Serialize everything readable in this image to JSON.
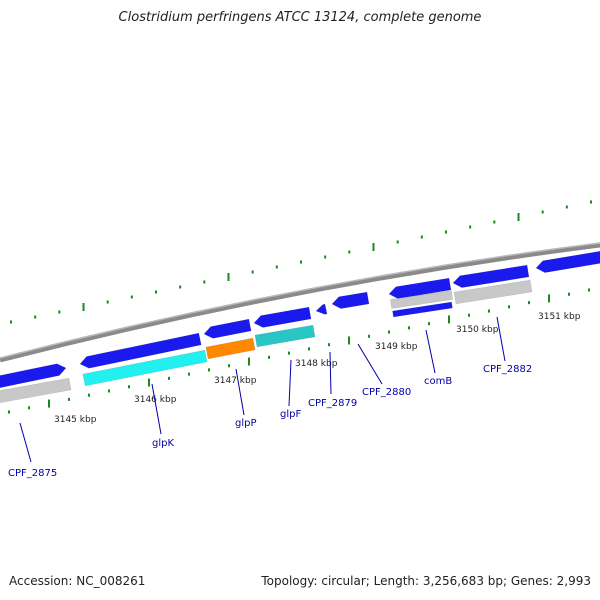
{
  "title": "Clostridium perfringens ATCC 13124, complete genome",
  "footer": {
    "accession": "Accession: NC_008261",
    "summary": "Topology: circular; Length: 3,256,683 bp; Genes: 2,993"
  },
  "colors": {
    "backbone": "#8a8a8a",
    "cds": "#1a1aee",
    "cds_gray": "#c8c8c8",
    "rna_cyan": "#22f0f0",
    "rna_orange": "#ff8800",
    "rna_teal": "#2ac6c6",
    "tick": "#1a8a1a",
    "label": "#0000aa"
  },
  "scale": {
    "ticks": [
      {
        "label": "3145 kbp"
      },
      {
        "label": "3146 kbp"
      },
      {
        "label": "3147 kbp"
      },
      {
        "label": "3148 kbp"
      },
      {
        "label": "3149 kbp"
      },
      {
        "label": "3150 kbp"
      },
      {
        "label": "3151 kbp"
      }
    ]
  },
  "genes": [
    {
      "name": "CPF_2875"
    },
    {
      "name": "glpK"
    },
    {
      "name": "glpP"
    },
    {
      "name": "glpF"
    },
    {
      "name": "CPF_2879"
    },
    {
      "name": "CPF_2880"
    },
    {
      "name": "comB"
    },
    {
      "name": "CPF_2882"
    }
  ]
}
